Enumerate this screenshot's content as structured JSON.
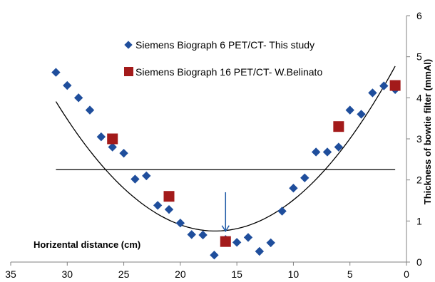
{
  "chart_data": {
    "type": "scatter",
    "title": "",
    "xlabel": "",
    "ylabel": "Thickness of bowtie filter (mmAl)",
    "annotation": "Horizental distance (cm)",
    "xlim": [
      35,
      0
    ],
    "ylim": [
      0,
      6
    ],
    "x_ticks": [
      "35",
      "30",
      "25",
      "20",
      "15",
      "10",
      "5",
      "0"
    ],
    "y_ticks": [
      "0",
      "1",
      "2",
      "3",
      "4",
      "5",
      "6"
    ],
    "y_axis_side": "right",
    "grid": false,
    "legend_position": "top-center",
    "series": [
      {
        "name": "Siemens Biograph 6 PET/CT- This study",
        "marker": "diamond",
        "color": "#1f4e9c",
        "x": [
          31,
          30,
          29,
          28,
          27,
          26,
          25,
          24,
          23,
          22,
          21,
          20,
          19,
          18,
          17,
          16,
          15,
          14,
          13,
          12,
          11,
          10,
          9,
          8,
          7,
          6,
          5,
          4,
          3,
          2,
          1
        ],
        "y": [
          4.62,
          4.3,
          4.0,
          3.7,
          3.05,
          2.8,
          2.65,
          2.02,
          2.1,
          1.38,
          1.28,
          0.95,
          0.67,
          0.66,
          0.17,
          0.55,
          0.48,
          0.6,
          0.26,
          0.47,
          1.24,
          1.8,
          2.05,
          2.68,
          2.68,
          2.8,
          3.7,
          3.6,
          4.12,
          4.29,
          4.2
        ]
      },
      {
        "name": "Siemens Biograph 16 PET/CT- W.Belinato",
        "marker": "square",
        "color": "#a31a1a",
        "x": [
          26,
          21,
          16,
          6,
          1
        ],
        "y": [
          3.0,
          1.6,
          0.5,
          3.3,
          4.3
        ]
      }
    ],
    "trendline": {
      "type": "polynomial",
      "color": "#000000",
      "x_range": [
        31,
        1
      ],
      "coefficients": [
        0.01587,
        -0.5365,
        5.29
      ]
    },
    "reference_line": {
      "y": 2.25,
      "x_range": [
        31,
        1
      ],
      "color": "#000000"
    },
    "arrow": {
      "x": 16,
      "y_from": 1.7,
      "y_to": 0.75,
      "color": "#1f5aa6"
    }
  }
}
